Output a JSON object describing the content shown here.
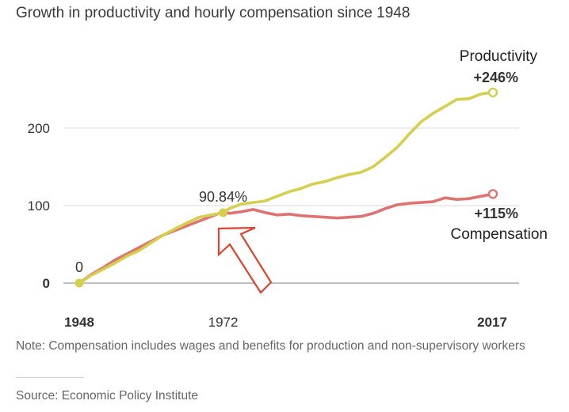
{
  "header": {
    "title": "Growth in productivity and hourly compensation since 1948"
  },
  "footer": {
    "note": "Note: Compensation includes wages and benefits for production and non-supervisory workers",
    "source": "Source: Economic Policy Institute"
  },
  "colors": {
    "productivity": "#d4cf4d",
    "compensation": "#de7371",
    "arrow": "#e0432f",
    "grid": "#d9d9d9"
  },
  "chart_data": {
    "type": "line",
    "title": "Growth in productivity and hourly compensation since 1948",
    "xlim": [
      1948,
      2017
    ],
    "ylim": [
      0,
      250
    ],
    "yticks": [
      0,
      100,
      200
    ],
    "ytick_labels": [
      "0",
      "100",
      "200"
    ],
    "xtick_labels": [
      "1948",
      "1972",
      "2017"
    ],
    "grid": true,
    "series": [
      {
        "name": "Productivity",
        "end_label": "+246%",
        "x": [
          1948,
          1950,
          1952,
          1954,
          1956,
          1958,
          1960,
          1962,
          1964,
          1966,
          1968,
          1970,
          1972,
          1973,
          1975,
          1977,
          1979,
          1981,
          1983,
          1985,
          1987,
          1989,
          1991,
          1993,
          1995,
          1997,
          1999,
          2001,
          2003,
          2005,
          2007,
          2009,
          2011,
          2013,
          2015,
          2017
        ],
        "values": [
          0,
          10,
          18,
          26,
          35,
          42,
          52,
          62,
          70,
          78,
          85,
          88,
          90.84,
          96,
          102,
          104,
          106,
          112,
          118,
          122,
          128,
          131,
          136,
          140,
          143,
          150,
          162,
          175,
          192,
          208,
          219,
          228,
          237,
          238,
          244,
          246
        ]
      },
      {
        "name": "Compensation",
        "end_label": "+115%",
        "x": [
          1948,
          1950,
          1952,
          1954,
          1956,
          1958,
          1960,
          1962,
          1964,
          1966,
          1968,
          1970,
          1972,
          1973,
          1975,
          1977,
          1979,
          1981,
          1983,
          1985,
          1987,
          1989,
          1991,
          1993,
          1995,
          1997,
          1999,
          2001,
          2003,
          2005,
          2007,
          2009,
          2011,
          2013,
          2015,
          2017
        ],
        "values": [
          0,
          11,
          20,
          30,
          38,
          46,
          54,
          62,
          68,
          74,
          80,
          86,
          92,
          90,
          92,
          95,
          91,
          88,
          89,
          87,
          86,
          85,
          84,
          85,
          86,
          90,
          96,
          101,
          103,
          104,
          105,
          110,
          108,
          109,
          112,
          115
        ]
      }
    ],
    "annotations": [
      {
        "x": 1948,
        "y": 0,
        "text": "0"
      },
      {
        "x": 1972,
        "y": 90.84,
        "text": "90.84%"
      }
    ]
  }
}
